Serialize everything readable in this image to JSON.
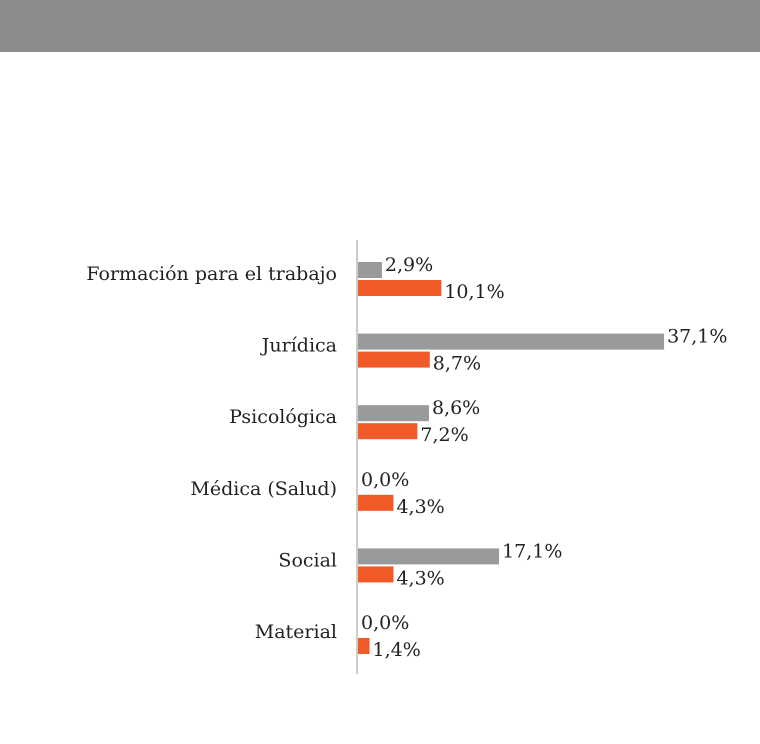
{
  "chart_data": {
    "type": "barh",
    "categories": [
      "Formación para el trabajo",
      "Jurídica",
      "Psicológica",
      "Médica (Salud)",
      "Social",
      "Material"
    ],
    "series": [
      {
        "color": "#999a9b",
        "values": [
          2.9,
          37.1,
          8.6,
          0.0,
          17.1,
          0.0
        ],
        "value_labels": [
          "2,9%",
          "37,1%",
          "8,6%",
          "0,0%",
          "17,1%",
          "0,0%"
        ]
      },
      {
        "color": "#f15a29",
        "values": [
          10.1,
          8.7,
          7.2,
          4.3,
          4.3,
          1.4
        ],
        "value_labels": [
          "10,1%",
          "8,7%",
          "7,2%",
          "4,3%",
          "4,3%",
          "1,4%"
        ]
      }
    ]
  }
}
